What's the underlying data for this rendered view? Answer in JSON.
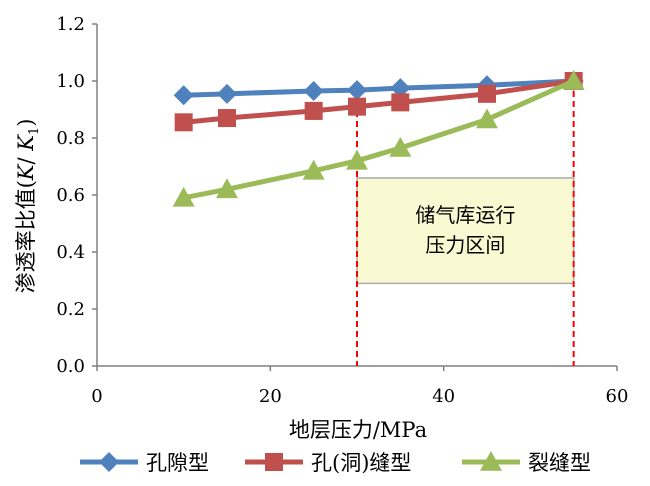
{
  "chart_data": {
    "type": "line",
    "title": "",
    "xlabel": "地层压力/MPa",
    "ylabel_main": "渗透率比值(",
    "ylabel_k": "K",
    "ylabel_slash": "/ ",
    "ylabel_k1": "K",
    "ylabel_sub": "1",
    "ylabel_close": ")",
    "xlim": [
      0,
      60
    ],
    "ylim": [
      0,
      1.2
    ],
    "x_ticks": [
      "0",
      "20",
      "40",
      "60"
    ],
    "y_ticks": [
      "0.0",
      "0.2",
      "0.4",
      "0.6",
      "0.8",
      "1.0",
      "1.2"
    ],
    "grid": false,
    "legend_position": "bottom",
    "series": [
      {
        "name": "孔隙型",
        "color": "#4F81BD",
        "marker": "diamond",
        "x": [
          10,
          15,
          25,
          30,
          35,
          45,
          55
        ],
        "y": [
          0.95,
          0.955,
          0.965,
          0.968,
          0.975,
          0.985,
          1.0
        ]
      },
      {
        "name": "孔(洞)缝型",
        "color": "#C0504D",
        "marker": "square",
        "x": [
          10,
          15,
          25,
          30,
          35,
          45,
          55
        ],
        "y": [
          0.855,
          0.87,
          0.895,
          0.91,
          0.925,
          0.955,
          1.0
        ]
      },
      {
        "name": "裂缝型",
        "color": "#9BBB59",
        "marker": "triangle",
        "x": [
          10,
          15,
          25,
          30,
          35,
          45,
          55
        ],
        "y": [
          0.59,
          0.62,
          0.685,
          0.72,
          0.765,
          0.865,
          1.0
        ]
      }
    ],
    "annotation": {
      "line1": "储气库运行",
      "line2": "压力区间",
      "x_range": [
        30,
        55
      ],
      "y_range": [
        0.29,
        0.66
      ],
      "fill": "#FAFAD2",
      "border": "#AAAAAA"
    },
    "vlines": [
      {
        "x": 30,
        "color": "#FF0000"
      },
      {
        "x": 55,
        "color": "#FF0000"
      }
    ]
  }
}
